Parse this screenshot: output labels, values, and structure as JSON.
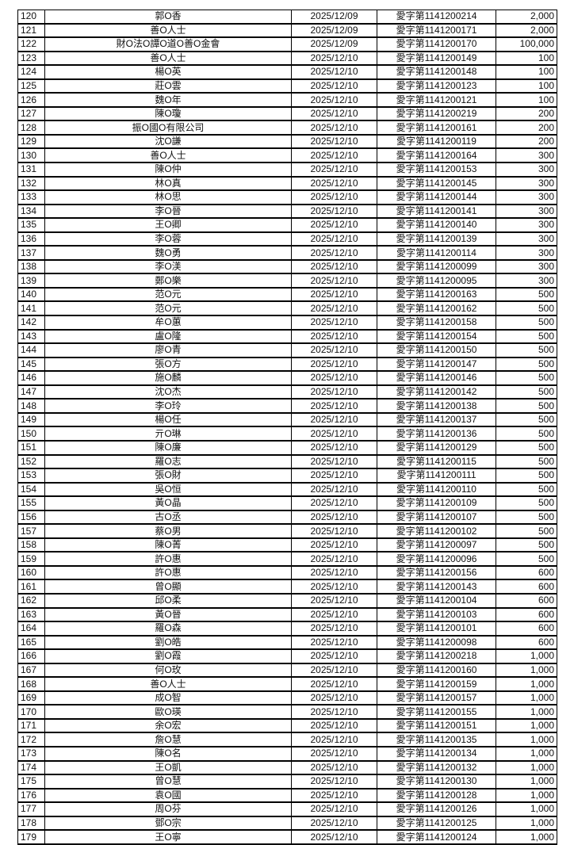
{
  "table": {
    "rows": [
      [
        "120",
        "郭O香",
        "2025/12/09",
        "愛字第1141200214",
        "2,000"
      ],
      [
        "121",
        "善O人士",
        "2025/12/09",
        "愛字第1141200171",
        "2,000"
      ],
      [
        "122",
        "財O法O譚O道O善O金會",
        "2025/12/09",
        "愛字第1141200170",
        "100,000"
      ],
      [
        "123",
        "善O人士",
        "2025/12/10",
        "愛字第1141200149",
        "100"
      ],
      [
        "124",
        "楊O英",
        "2025/12/10",
        "愛字第1141200148",
        "100"
      ],
      [
        "125",
        "莊O雲",
        "2025/12/10",
        "愛字第1141200123",
        "100"
      ],
      [
        "126",
        "魏O年",
        "2025/12/10",
        "愛字第1141200121",
        "100"
      ],
      [
        "127",
        "陳O瓊",
        "2025/12/10",
        "愛字第1141200219",
        "200"
      ],
      [
        "128",
        "振O國O有限公司",
        "2025/12/10",
        "愛字第1141200161",
        "200"
      ],
      [
        "129",
        "沈O謙",
        "2025/12/10",
        "愛字第1141200119",
        "200"
      ],
      [
        "130",
        "善O人士",
        "2025/12/10",
        "愛字第1141200164",
        "300"
      ],
      [
        "131",
        "陳O仲",
        "2025/12/10",
        "愛字第1141200153",
        "300"
      ],
      [
        "132",
        "林O真",
        "2025/12/10",
        "愛字第1141200145",
        "300"
      ],
      [
        "133",
        "林O思",
        "2025/12/10",
        "愛字第1141200144",
        "300"
      ],
      [
        "134",
        "李O晉",
        "2025/12/10",
        "愛字第1141200141",
        "300"
      ],
      [
        "135",
        "王O卿",
        "2025/12/10",
        "愛字第1141200140",
        "300"
      ],
      [
        "136",
        "李O蓉",
        "2025/12/10",
        "愛字第1141200139",
        "300"
      ],
      [
        "137",
        "魏O勇",
        "2025/12/10",
        "愛字第1141200114",
        "300"
      ],
      [
        "138",
        "李O渼",
        "2025/12/10",
        "愛字第1141200099",
        "300"
      ],
      [
        "139",
        "鄭O樂",
        "2025/12/10",
        "愛字第1141200095",
        "300"
      ],
      [
        "140",
        "范O元",
        "2025/12/10",
        "愛字第1141200163",
        "500"
      ],
      [
        "141",
        "范O元",
        "2025/12/10",
        "愛字第1141200162",
        "500"
      ],
      [
        "142",
        "牟O蕙",
        "2025/12/10",
        "愛字第1141200158",
        "500"
      ],
      [
        "143",
        "盧O隆",
        "2025/12/10",
        "愛字第1141200154",
        "500"
      ],
      [
        "144",
        "廖O青",
        "2025/12/10",
        "愛字第1141200150",
        "500"
      ],
      [
        "145",
        "張O方",
        "2025/12/10",
        "愛字第1141200147",
        "500"
      ],
      [
        "146",
        "施O麟",
        "2025/12/10",
        "愛字第1141200146",
        "500"
      ],
      [
        "147",
        "沈O杰",
        "2025/12/10",
        "愛字第1141200142",
        "500"
      ],
      [
        "148",
        "李O玲",
        "2025/12/10",
        "愛字第1141200138",
        "500"
      ],
      [
        "149",
        "楊O任",
        "2025/12/10",
        "愛字第1141200137",
        "500"
      ],
      [
        "150",
        "亓O琳",
        "2025/12/10",
        "愛字第1141200136",
        "500"
      ],
      [
        "151",
        "陳O廉",
        "2025/12/10",
        "愛字第1141200129",
        "500"
      ],
      [
        "152",
        "羅O志",
        "2025/12/10",
        "愛字第1141200115",
        "500"
      ],
      [
        "153",
        "張O財",
        "2025/12/10",
        "愛字第1141200111",
        "500"
      ],
      [
        "154",
        "吳O恒",
        "2025/12/10",
        "愛字第1141200110",
        "500"
      ],
      [
        "155",
        "黃O晶",
        "2025/12/10",
        "愛字第1141200109",
        "500"
      ],
      [
        "156",
        "古O丞",
        "2025/12/10",
        "愛字第1141200107",
        "500"
      ],
      [
        "157",
        "蔡O男",
        "2025/12/10",
        "愛字第1141200102",
        "500"
      ],
      [
        "158",
        "陳O菁",
        "2025/12/10",
        "愛字第1141200097",
        "500"
      ],
      [
        "159",
        "許O惠",
        "2025/12/10",
        "愛字第1141200096",
        "500"
      ],
      [
        "160",
        "許O惠",
        "2025/12/10",
        "愛字第1141200156",
        "600"
      ],
      [
        "161",
        "曾O顯",
        "2025/12/10",
        "愛字第1141200143",
        "600"
      ],
      [
        "162",
        "邱O柔",
        "2025/12/10",
        "愛字第1141200104",
        "600"
      ],
      [
        "163",
        "黃O晉",
        "2025/12/10",
        "愛字第1141200103",
        "600"
      ],
      [
        "164",
        "羅O森",
        "2025/12/10",
        "愛字第1141200101",
        "600"
      ],
      [
        "165",
        "劉O皓",
        "2025/12/10",
        "愛字第1141200098",
        "600"
      ],
      [
        "166",
        "劉O霞",
        "2025/12/10",
        "愛字第1141200218",
        "1,000"
      ],
      [
        "167",
        "何O玫",
        "2025/12/10",
        "愛字第1141200160",
        "1,000"
      ],
      [
        "168",
        "善O人士",
        "2025/12/10",
        "愛字第1141200159",
        "1,000"
      ],
      [
        "169",
        "成O智",
        "2025/12/10",
        "愛字第1141200157",
        "1,000"
      ],
      [
        "170",
        "歐O瑛",
        "2025/12/10",
        "愛字第1141200155",
        "1,000"
      ],
      [
        "171",
        "余O宏",
        "2025/12/10",
        "愛字第1141200151",
        "1,000"
      ],
      [
        "172",
        "詹O慧",
        "2025/12/10",
        "愛字第1141200135",
        "1,000"
      ],
      [
        "173",
        "陳O名",
        "2025/12/10",
        "愛字第1141200134",
        "1,000"
      ],
      [
        "174",
        "王O凱",
        "2025/12/10",
        "愛字第1141200132",
        "1,000"
      ],
      [
        "175",
        "曾O慧",
        "2025/12/10",
        "愛字第1141200130",
        "1,000"
      ],
      [
        "176",
        "袁O國",
        "2025/12/10",
        "愛字第1141200128",
        "1,000"
      ],
      [
        "177",
        "周O芬",
        "2025/12/10",
        "愛字第1141200126",
        "1,000"
      ],
      [
        "178",
        "鄧O宗",
        "2025/12/10",
        "愛字第1141200125",
        "1,000"
      ],
      [
        "179",
        "王O寧",
        "2025/12/10",
        "愛字第1141200124",
        "1,000"
      ]
    ]
  }
}
